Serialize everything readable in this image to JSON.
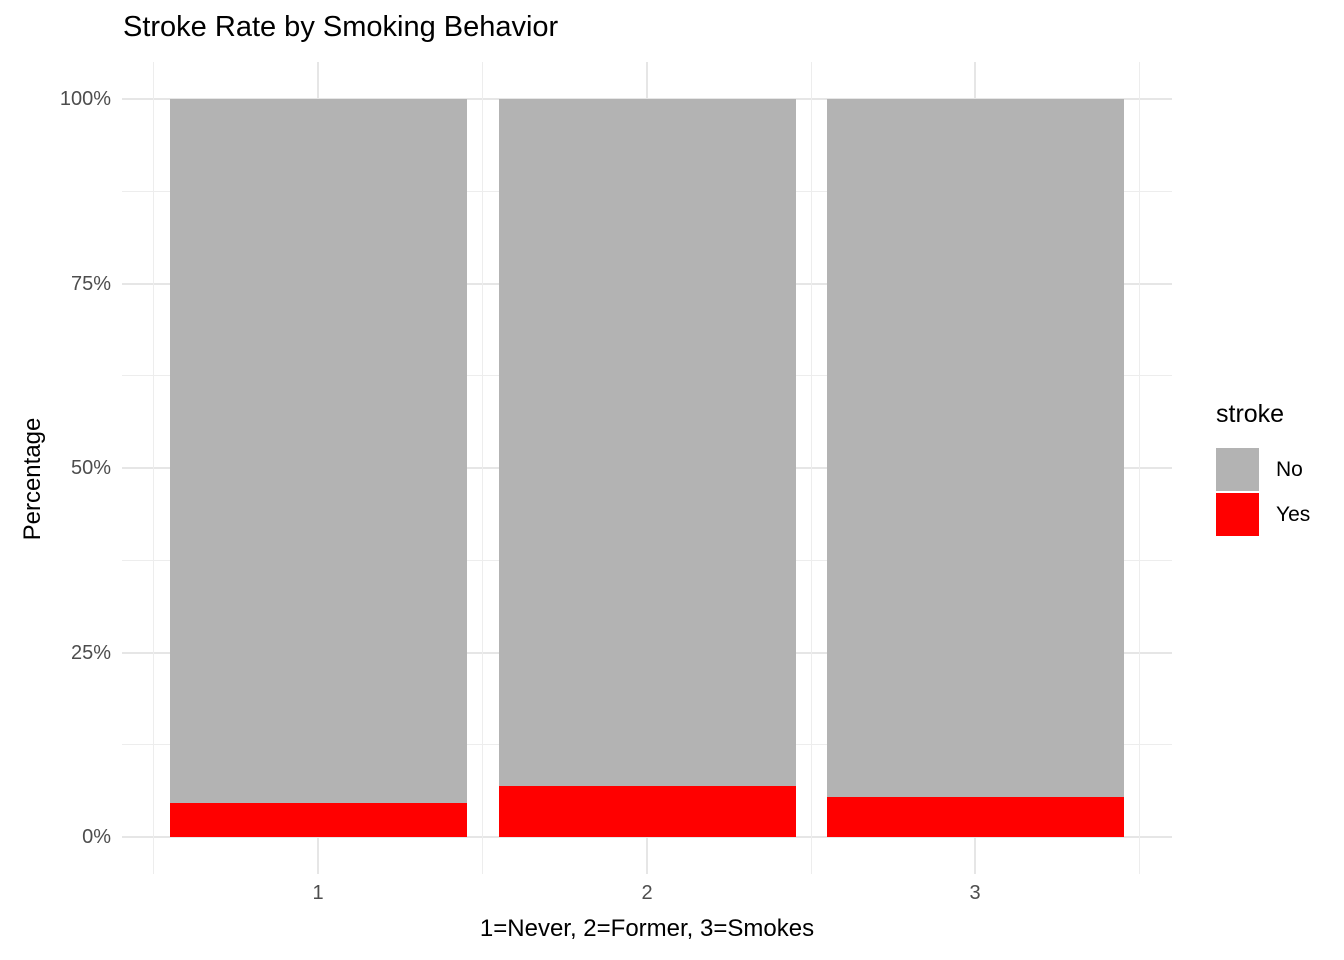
{
  "title": "Stroke Rate by Smoking Behavior",
  "y_axis": {
    "title": "Percentage",
    "tick_labels": [
      "0%",
      "25%",
      "50%",
      "75%",
      "100%"
    ],
    "tick_values": [
      0,
      25,
      50,
      75,
      100
    ],
    "minor_tick_values": [
      12.5,
      37.5,
      62.5,
      87.5
    ]
  },
  "x_axis": {
    "title": "1=Never, 2=Former, 3=Smokes",
    "tick_labels": [
      "1",
      "2",
      "3"
    ]
  },
  "legend": {
    "title": "stroke",
    "items": [
      {
        "label": "No",
        "color": "#b3b3b3"
      },
      {
        "label": "Yes",
        "color": "#ff0000"
      }
    ]
  },
  "colors": {
    "no_fill": "#b3b3b3",
    "yes_fill": "#ff0000",
    "grid_major": "#e6e6e6",
    "grid_minor": "#ededed",
    "tick_text": "#4d4d4d",
    "text": "#000000",
    "background": "#ffffff"
  },
  "chart_data": {
    "type": "bar",
    "subtype": "stacked-100-percent",
    "title": "Stroke Rate by Smoking Behavior",
    "xlabel": "1=Never, 2=Former, 3=Smokes",
    "ylabel": "Percentage",
    "categories": [
      "1",
      "2",
      "3"
    ],
    "category_meanings": [
      "Never",
      "Former",
      "Smokes"
    ],
    "series": [
      {
        "name": "Yes",
        "color": "#ff0000",
        "values": [
          4.6,
          6.9,
          5.4
        ]
      },
      {
        "name": "No",
        "color": "#b3b3b3",
        "values": [
          95.4,
          93.1,
          94.6
        ]
      }
    ],
    "ylim": [
      0,
      100
    ],
    "y_major_ticks": [
      0,
      25,
      50,
      75,
      100
    ],
    "y_minor_ticks": [
      12.5,
      37.5,
      62.5,
      87.5
    ],
    "grid": true,
    "legend_position": "right",
    "legend_title": "stroke"
  }
}
